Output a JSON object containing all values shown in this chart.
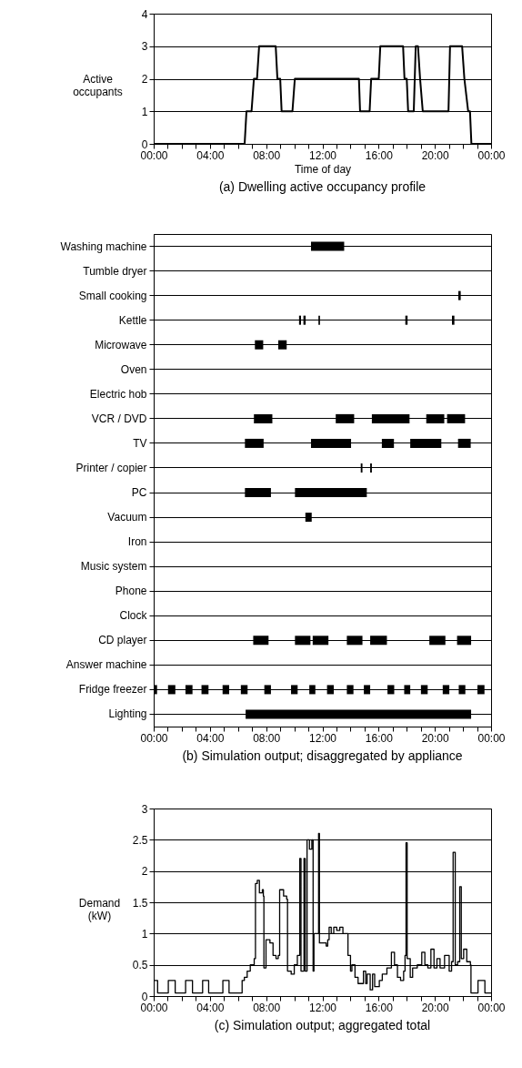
{
  "chart_data": [
    {
      "type": "line",
      "title": "(a) Dwelling active occupancy profile",
      "xlabel": "Time of day",
      "ylabel": "Active occupants",
      "grid": "y",
      "xlim": [
        0,
        24
      ],
      "ylim": [
        0,
        4
      ],
      "yticks": [
        0,
        1,
        2,
        3,
        4
      ],
      "xticks": [
        {
          "value": 0,
          "label": "00:00"
        },
        {
          "value": 1,
          "label": null
        },
        {
          "value": 2,
          "label": null
        },
        {
          "value": 3,
          "label": null
        },
        {
          "value": 4,
          "label": "04:00"
        },
        {
          "value": 5,
          "label": null
        },
        {
          "value": 6,
          "label": null
        },
        {
          "value": 7,
          "label": null
        },
        {
          "value": 8,
          "label": "08:00"
        },
        {
          "value": 9,
          "label": null
        },
        {
          "value": 10,
          "label": null
        },
        {
          "value": 11,
          "label": null
        },
        {
          "value": 12,
          "label": "12:00"
        },
        {
          "value": 13,
          "label": null
        },
        {
          "value": 14,
          "label": null
        },
        {
          "value": 15,
          "label": null
        },
        {
          "value": 16,
          "label": "16:00"
        },
        {
          "value": 17,
          "label": null
        },
        {
          "value": 18,
          "label": null
        },
        {
          "value": 19,
          "label": null
        },
        {
          "value": 20,
          "label": "20:00"
        },
        {
          "value": 21,
          "label": null
        },
        {
          "value": 22,
          "label": null
        },
        {
          "value": 23,
          "label": null
        },
        {
          "value": 24,
          "label": "00:00"
        }
      ],
      "x": [
        0,
        6.47,
        6.6,
        6.96,
        7.13,
        7.35,
        7.5,
        8.68,
        8.8,
        9.0,
        9.1,
        9.87,
        10.04,
        14.6,
        14.68,
        15.36,
        15.47,
        16.01,
        16.12,
        17.74,
        17.84,
        18.0,
        18.1,
        18.5,
        18.64,
        18.8,
        18.95,
        19.14,
        20.97,
        21.08,
        21.94,
        22.1,
        22.37,
        22.5,
        22.6,
        24
      ],
      "series": [
        {
          "color": "#000000",
          "values": [
            0,
            0,
            1,
            1,
            2,
            2,
            3,
            3,
            2,
            2,
            1,
            1,
            2,
            2,
            1,
            1,
            2,
            2,
            3,
            3,
            2,
            2,
            1,
            1,
            3,
            3,
            2,
            1,
            1,
            3,
            3,
            2,
            1,
            1,
            0,
            0
          ]
        }
      ]
    },
    {
      "type": "bar",
      "orientation": "horizontal",
      "title": "(b) Simulation output; disaggregated by appliance",
      "grid": "y",
      "xlim": [
        0,
        24
      ],
      "xticks": [
        {
          "value": 0,
          "label": "00:00"
        },
        {
          "value": 1,
          "label": null
        },
        {
          "value": 2,
          "label": null
        },
        {
          "value": 3,
          "label": null
        },
        {
          "value": 4,
          "label": "04:00"
        },
        {
          "value": 5,
          "label": null
        },
        {
          "value": 6,
          "label": null
        },
        {
          "value": 7,
          "label": null
        },
        {
          "value": 8,
          "label": "08:00"
        },
        {
          "value": 9,
          "label": null
        },
        {
          "value": 10,
          "label": null
        },
        {
          "value": 11,
          "label": null
        },
        {
          "value": 12,
          "label": "12:00"
        },
        {
          "value": 13,
          "label": null
        },
        {
          "value": 14,
          "label": null
        },
        {
          "value": 15,
          "label": null
        },
        {
          "value": 16,
          "label": "16:00"
        },
        {
          "value": 17,
          "label": null
        },
        {
          "value": 18,
          "label": null
        },
        {
          "value": 19,
          "label": null
        },
        {
          "value": 20,
          "label": "20:00"
        },
        {
          "value": 21,
          "label": null
        },
        {
          "value": 22,
          "label": null
        },
        {
          "value": 23,
          "label": null
        },
        {
          "value": 24,
          "label": "00:00"
        }
      ],
      "categories": [
        "Washing machine",
        "Tumble dryer",
        "Small cooking",
        "Kettle",
        "Microwave",
        "Oven",
        "Electric hob",
        "VCR / DVD",
        "TV",
        "Printer / copier",
        "PC",
        "Vacuum",
        "Iron",
        "Music system",
        "Phone",
        "Clock",
        "CD player",
        "Answer machine",
        "Fridge freezer",
        "Lighting"
      ],
      "series": [
        {
          "color": "#000000",
          "base": [
            11.19,
            null,
            21.67,
            10.34,
            7.2,
            null,
            null,
            7.13,
            6.49,
            14.73,
            6.49,
            10.79,
            null,
            null,
            null,
            null,
            7.08,
            null,
            0,
            6.54
          ],
          "values": [
            2.36,
            null,
            0.17,
            0.14,
            0.59,
            null,
            null,
            1.31,
            1.33,
            0.12,
            1.85,
            0.45,
            null,
            null,
            null,
            null,
            1.09,
            null,
            0.24,
            16.04
          ]
        },
        {
          "color": "#000000",
          "base": [
            null,
            null,
            null,
            10.65,
            8.86,
            null,
            null,
            12.95,
            11.19,
            15.4,
            10.05,
            null,
            null,
            null,
            null,
            null,
            10.05,
            null,
            1.02,
            null
          ],
          "values": [
            null,
            null,
            null,
            0.16,
            0.6,
            null,
            null,
            1.31,
            2.85,
            0.12,
            5.11,
            null,
            null,
            null,
            null,
            null,
            1.1,
            null,
            0.52,
            null
          ]
        },
        {
          "color": "#000000",
          "base": [
            null,
            null,
            null,
            11.72,
            null,
            null,
            null,
            15.52,
            16.23,
            null,
            null,
            null,
            null,
            null,
            null,
            null,
            11.31,
            null,
            2.26,
            null
          ],
          "values": [
            null,
            null,
            null,
            0.11,
            null,
            null,
            null,
            2.68,
            0.86,
            null,
            null,
            null,
            null,
            null,
            null,
            null,
            1.12,
            null,
            0.5,
            null
          ]
        },
        {
          "color": "#000000",
          "base": [
            null,
            null,
            null,
            17.9,
            null,
            null,
            null,
            19.39,
            18.25,
            null,
            null,
            null,
            null,
            null,
            null,
            null,
            13.74,
            null,
            3.4,
            null
          ],
          "values": [
            null,
            null,
            null,
            0.16,
            null,
            null,
            null,
            1.28,
            2.21,
            null,
            null,
            null,
            null,
            null,
            null,
            null,
            1.11,
            null,
            0.5,
            null
          ]
        },
        {
          "color": "#000000",
          "base": [
            null,
            null,
            null,
            21.22,
            null,
            null,
            null,
            20.87,
            21.65,
            null,
            null,
            null,
            null,
            null,
            null,
            null,
            15.4,
            null,
            4.9,
            null
          ],
          "values": [
            null,
            null,
            null,
            0.17,
            null,
            null,
            null,
            1.28,
            0.9,
            null,
            null,
            null,
            null,
            null,
            null,
            null,
            1.19,
            null,
            0.47,
            null
          ]
        },
        {
          "color": "#000000",
          "base": [
            null,
            null,
            null,
            null,
            null,
            null,
            null,
            null,
            null,
            null,
            null,
            null,
            null,
            null,
            null,
            null,
            19.61,
            null,
            6.2,
            null
          ],
          "values": [
            null,
            null,
            null,
            null,
            null,
            null,
            null,
            null,
            null,
            null,
            null,
            null,
            null,
            null,
            null,
            null,
            1.14,
            null,
            0.48,
            null
          ]
        },
        {
          "color": "#000000",
          "base": [
            null,
            null,
            null,
            null,
            null,
            null,
            null,
            null,
            null,
            null,
            null,
            null,
            null,
            null,
            null,
            null,
            21.58,
            null,
            7.87,
            null
          ],
          "values": [
            null,
            null,
            null,
            null,
            null,
            null,
            null,
            null,
            null,
            null,
            null,
            null,
            null,
            null,
            null,
            null,
            1.0,
            null,
            0.47,
            null
          ]
        },
        {
          "color": "#000000",
          "base": [
            null,
            null,
            null,
            null,
            null,
            null,
            null,
            null,
            null,
            null,
            null,
            null,
            null,
            null,
            null,
            null,
            null,
            null,
            9.77,
            null
          ],
          "values": [
            null,
            null,
            null,
            null,
            null,
            null,
            null,
            null,
            null,
            null,
            null,
            null,
            null,
            null,
            null,
            null,
            null,
            null,
            0.47,
            null
          ]
        },
        {
          "color": "#000000",
          "base": [
            null,
            null,
            null,
            null,
            null,
            null,
            null,
            null,
            null,
            null,
            null,
            null,
            null,
            null,
            null,
            null,
            null,
            null,
            11.07,
            null
          ],
          "values": [
            null,
            null,
            null,
            null,
            null,
            null,
            null,
            null,
            null,
            null,
            null,
            null,
            null,
            null,
            null,
            null,
            null,
            null,
            0.43,
            null
          ]
        },
        {
          "color": "#000000",
          "base": [
            null,
            null,
            null,
            null,
            null,
            null,
            null,
            null,
            null,
            null,
            null,
            null,
            null,
            null,
            null,
            null,
            null,
            null,
            12.33,
            null
          ],
          "values": [
            null,
            null,
            null,
            null,
            null,
            null,
            null,
            null,
            null,
            null,
            null,
            null,
            null,
            null,
            null,
            null,
            null,
            null,
            0.48,
            null
          ]
        },
        {
          "color": "#000000",
          "base": [
            null,
            null,
            null,
            null,
            null,
            null,
            null,
            null,
            null,
            null,
            null,
            null,
            null,
            null,
            null,
            null,
            null,
            null,
            13.74,
            null
          ],
          "values": [
            null,
            null,
            null,
            null,
            null,
            null,
            null,
            null,
            null,
            null,
            null,
            null,
            null,
            null,
            null,
            null,
            null,
            null,
            0.47,
            null
          ]
        },
        {
          "color": "#000000",
          "base": [
            null,
            null,
            null,
            null,
            null,
            null,
            null,
            null,
            null,
            null,
            null,
            null,
            null,
            null,
            null,
            null,
            null,
            null,
            14.95,
            null
          ],
          "values": [
            null,
            null,
            null,
            null,
            null,
            null,
            null,
            null,
            null,
            null,
            null,
            null,
            null,
            null,
            null,
            null,
            null,
            null,
            0.45,
            null
          ]
        },
        {
          "color": "#000000",
          "base": [
            null,
            null,
            null,
            null,
            null,
            null,
            null,
            null,
            null,
            null,
            null,
            null,
            null,
            null,
            null,
            null,
            null,
            null,
            16.63,
            null
          ],
          "values": [
            null,
            null,
            null,
            null,
            null,
            null,
            null,
            null,
            null,
            null,
            null,
            null,
            null,
            null,
            null,
            null,
            null,
            null,
            0.48,
            null
          ]
        },
        {
          "color": "#000000",
          "base": [
            null,
            null,
            null,
            null,
            null,
            null,
            null,
            null,
            null,
            null,
            null,
            null,
            null,
            null,
            null,
            null,
            null,
            null,
            17.82,
            null
          ],
          "values": [
            null,
            null,
            null,
            null,
            null,
            null,
            null,
            null,
            null,
            null,
            null,
            null,
            null,
            null,
            null,
            null,
            null,
            null,
            0.43,
            null
          ]
        },
        {
          "color": "#000000",
          "base": [
            null,
            null,
            null,
            null,
            null,
            null,
            null,
            null,
            null,
            null,
            null,
            null,
            null,
            null,
            null,
            null,
            null,
            null,
            19.01,
            null
          ],
          "values": [
            null,
            null,
            null,
            null,
            null,
            null,
            null,
            null,
            null,
            null,
            null,
            null,
            null,
            null,
            null,
            null,
            null,
            null,
            0.48,
            null
          ]
        },
        {
          "color": "#000000",
          "base": [
            null,
            null,
            null,
            null,
            null,
            null,
            null,
            null,
            null,
            null,
            null,
            null,
            null,
            null,
            null,
            null,
            null,
            null,
            20.56,
            null
          ],
          "values": [
            null,
            null,
            null,
            null,
            null,
            null,
            null,
            null,
            null,
            null,
            null,
            null,
            null,
            null,
            null,
            null,
            null,
            null,
            0.47,
            null
          ]
        },
        {
          "color": "#000000",
          "base": [
            null,
            null,
            null,
            null,
            null,
            null,
            null,
            null,
            null,
            null,
            null,
            null,
            null,
            null,
            null,
            null,
            null,
            null,
            21.7,
            null
          ],
          "values": [
            null,
            null,
            null,
            null,
            null,
            null,
            null,
            null,
            null,
            null,
            null,
            null,
            null,
            null,
            null,
            null,
            null,
            null,
            0.47,
            null
          ]
        },
        {
          "color": "#000000",
          "base": [
            null,
            null,
            null,
            null,
            null,
            null,
            null,
            null,
            null,
            null,
            null,
            null,
            null,
            null,
            null,
            null,
            null,
            null,
            23.03,
            null
          ],
          "values": [
            null,
            null,
            null,
            null,
            null,
            null,
            null,
            null,
            null,
            null,
            null,
            null,
            null,
            null,
            null,
            null,
            null,
            null,
            0.5,
            null
          ]
        }
      ]
    },
    {
      "type": "step",
      "title": "(c) Simulation output; aggregated total",
      "ylabel": "Demand (kW)",
      "grid": "y",
      "xlim": [
        0,
        24
      ],
      "ylim": [
        0,
        3
      ],
      "yticks": [
        0,
        0.5,
        1,
        1.5,
        2,
        2.5,
        3
      ],
      "xticks": [
        {
          "value": 0,
          "label": "00:00"
        },
        {
          "value": 1,
          "label": null
        },
        {
          "value": 2,
          "label": null
        },
        {
          "value": 3,
          "label": null
        },
        {
          "value": 4,
          "label": "04:00"
        },
        {
          "value": 5,
          "label": null
        },
        {
          "value": 6,
          "label": null
        },
        {
          "value": 7,
          "label": null
        },
        {
          "value": 8,
          "label": "08:00"
        },
        {
          "value": 9,
          "label": null
        },
        {
          "value": 10,
          "label": null
        },
        {
          "value": 11,
          "label": null
        },
        {
          "value": 12,
          "label": "12:00"
        },
        {
          "value": 13,
          "label": null
        },
        {
          "value": 14,
          "label": null
        },
        {
          "value": 15,
          "label": null
        },
        {
          "value": 16,
          "label": "16:00"
        },
        {
          "value": 17,
          "label": null
        },
        {
          "value": 18,
          "label": null
        },
        {
          "value": 19,
          "label": null
        },
        {
          "value": 20,
          "label": "20:00"
        },
        {
          "value": 21,
          "label": null
        },
        {
          "value": 22,
          "label": null
        },
        {
          "value": 23,
          "label": null
        },
        {
          "value": 24,
          "label": "00:00"
        }
      ],
      "x": [
        0,
        0.28,
        1.04,
        1.53,
        2.27,
        2.76,
        3.48,
        3.91,
        4.92,
        5.36,
        6.29,
        6.45,
        6.65,
        6.87,
        7.15,
        7.24,
        7.37,
        7.52,
        7.73,
        7.8,
        7.84,
        7.99,
        8.27,
        8.49,
        8.7,
        8.86,
        8.96,
        9.24,
        9.46,
        9.52,
        9.78,
        10.0,
        10.22,
        10.39,
        10.48,
        10.69,
        10.78,
        10.91,
        11.08,
        11.25,
        11.34,
        11.4,
        11.73,
        11.79,
        12.27,
        12.38,
        12.48,
        12.63,
        12.81,
        13.02,
        13.24,
        13.46,
        13.82,
        14.0,
        14.1,
        14.32,
        14.54,
        14.75,
        14.92,
        15.08,
        15.18,
        15.4,
        15.57,
        15.72,
        16.05,
        16.26,
        16.59,
        16.91,
        17.13,
        17.34,
        17.56,
        17.78,
        17.88,
        17.95,
        18.03,
        18.25,
        18.42,
        18.75,
        19.07,
        19.29,
        19.5,
        19.72,
        19.94,
        20.15,
        20.37,
        20.69,
        21.02,
        21.19,
        21.3,
        21.45,
        21.62,
        21.77,
        21.88,
        22.05,
        22.27,
        22.53,
        22.57,
        23.07,
        23.56,
        24
      ],
      "series": [
        {
          "color": "#000000",
          "values": [
            0.25,
            0.05,
            0.25,
            0.05,
            0.25,
            0.05,
            0.25,
            0.05,
            0.25,
            0.05,
            0.25,
            0.3,
            0.4,
            0.5,
            0.6,
            1.8,
            1.85,
            1.65,
            1.7,
            1.6,
            0.45,
            0.9,
            0.85,
            0.65,
            0.6,
            0.65,
            1.7,
            1.6,
            1.55,
            0.4,
            0.35,
            0.5,
            0.65,
            2.2,
            0.4,
            2.2,
            0.4,
            2.5,
            2.35,
            2.5,
            0.4,
            1.0,
            2.6,
            0.85,
            0.8,
            0.9,
            1.1,
            1.0,
            1.1,
            1.05,
            1.1,
            1.0,
            0.65,
            0.4,
            0.5,
            0.3,
            0.2,
            0.2,
            0.4,
            0.2,
            0.35,
            0.1,
            0.35,
            0.15,
            0.25,
            0.35,
            0.45,
            0.7,
            0.5,
            0.3,
            0.25,
            0.4,
            0.65,
            2.45,
            0.6,
            0.3,
            0.45,
            0.5,
            0.7,
            0.5,
            0.45,
            0.75,
            0.45,
            0.6,
            0.45,
            0.65,
            0.4,
            0.55,
            2.3,
            0.5,
            0.55,
            1.75,
            0.6,
            0.75,
            0.55,
            0.5,
            0.05,
            0.25,
            0.05,
            0.05
          ]
        }
      ]
    }
  ]
}
